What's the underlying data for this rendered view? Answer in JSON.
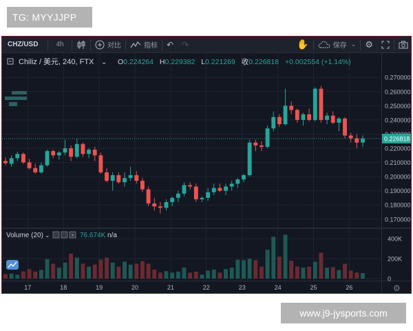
{
  "watermarks": {
    "top": "TG: MYYJJPP",
    "bottom": "www.j9-jysports.com"
  },
  "toolbar": {
    "symbol": "CHZ/USD",
    "interval": "4h",
    "compare_label": "对比",
    "indicators_label": "指标",
    "save_label": "保存",
    "undo_icon": "undo-icon",
    "redo_icon": "redo-icon",
    "bar_style_icon": "candles-icon",
    "settings_icon": "gear-icon",
    "fullscreen_icon": "fullscreen-icon",
    "snapshot_icon": "camera-icon"
  },
  "legend": {
    "title": "Chiliz / 美元, 240, FTX",
    "o_label": "O",
    "o_value": "0.224264",
    "h_label": "H",
    "h_value": "0.229382",
    "l_label": "L",
    "l_value": "0.221269",
    "c_label": "收",
    "c_value": "0.226818",
    "change": "+0.002554 (+1.14%)"
  },
  "volume_legend": {
    "title": "Volume (20)",
    "value": "76.674K",
    "extra": "n/a"
  },
  "colors": {
    "background": "#131722",
    "up": "#26a69a",
    "down": "#ef5350",
    "text": "#d1d4dc",
    "axis_text": "#b2b5be",
    "grid": "#1f2430",
    "window_border": "#7a1c22"
  },
  "chart_data": {
    "type": "candlestick",
    "price_axis": {
      "ticks": [
        "0.270000",
        "0.260000",
        "0.250000",
        "0.240000",
        "0.230000",
        "0.220000",
        "0.210000",
        "0.200000",
        "0.190000",
        "0.180000",
        "0.170000"
      ],
      "range": [
        0.1655,
        0.2745
      ],
      "last_price_label": "0.226818"
    },
    "volume_axis": {
      "ticks": [
        "400K",
        "200K",
        "0"
      ],
      "range": [
        0,
        450000
      ]
    },
    "x_labels": [
      "17",
      "18",
      "19",
      "20",
      "21",
      "22",
      "23",
      "24",
      "25",
      "26"
    ],
    "candles": [
      [
        0.211,
        0.2135,
        0.208,
        0.2095,
        45000
      ],
      [
        0.209,
        0.215,
        0.207,
        0.213,
        50000
      ],
      [
        0.213,
        0.2175,
        0.211,
        0.216,
        38000
      ],
      [
        0.216,
        0.217,
        0.209,
        0.21,
        72000
      ],
      [
        0.21,
        0.2125,
        0.205,
        0.206,
        95000
      ],
      [
        0.206,
        0.209,
        0.202,
        0.203,
        70000
      ],
      [
        0.203,
        0.21,
        0.202,
        0.208,
        88000
      ],
      [
        0.208,
        0.219,
        0.207,
        0.218,
        195000
      ],
      [
        0.218,
        0.219,
        0.213,
        0.215,
        150000
      ],
      [
        0.215,
        0.218,
        0.212,
        0.217,
        110000
      ],
      [
        0.217,
        0.226,
        0.215,
        0.22,
        160000
      ],
      [
        0.22,
        0.222,
        0.211,
        0.214,
        250000
      ],
      [
        0.214,
        0.227,
        0.213,
        0.223,
        210000
      ],
      [
        0.223,
        0.224,
        0.214,
        0.216,
        150000
      ],
      [
        0.216,
        0.22,
        0.213,
        0.219,
        120000
      ],
      [
        0.219,
        0.221,
        0.211,
        0.215,
        140000
      ],
      [
        0.215,
        0.217,
        0.202,
        0.203,
        190000
      ],
      [
        0.203,
        0.206,
        0.196,
        0.197,
        210000
      ],
      [
        0.197,
        0.203,
        0.19,
        0.201,
        160000
      ],
      [
        0.201,
        0.203,
        0.195,
        0.196,
        120000
      ],
      [
        0.196,
        0.203,
        0.193,
        0.199,
        170000
      ],
      [
        0.199,
        0.207,
        0.197,
        0.201,
        140000
      ],
      [
        0.201,
        0.204,
        0.195,
        0.197,
        150000
      ],
      [
        0.197,
        0.199,
        0.189,
        0.191,
        175000
      ],
      [
        0.191,
        0.193,
        0.179,
        0.181,
        150000
      ],
      [
        0.181,
        0.185,
        0.176,
        0.179,
        90000
      ],
      [
        0.179,
        0.182,
        0.174,
        0.178,
        60000
      ],
      [
        0.178,
        0.184,
        0.176,
        0.182,
        75000
      ],
      [
        0.182,
        0.186,
        0.179,
        0.185,
        60000
      ],
      [
        0.185,
        0.19,
        0.182,
        0.188,
        70000
      ],
      [
        0.188,
        0.196,
        0.186,
        0.194,
        110000
      ],
      [
        0.194,
        0.196,
        0.191,
        0.193,
        60000
      ],
      [
        0.193,
        0.195,
        0.182,
        0.184,
        70000
      ],
      [
        0.184,
        0.186,
        0.182,
        0.185,
        40000
      ],
      [
        0.185,
        0.192,
        0.183,
        0.189,
        80000
      ],
      [
        0.189,
        0.195,
        0.187,
        0.192,
        90000
      ],
      [
        0.192,
        0.195,
        0.189,
        0.19,
        60000
      ],
      [
        0.19,
        0.195,
        0.187,
        0.193,
        95000
      ],
      [
        0.193,
        0.197,
        0.19,
        0.195,
        110000
      ],
      [
        0.195,
        0.199,
        0.192,
        0.198,
        190000
      ],
      [
        0.198,
        0.202,
        0.196,
        0.201,
        185000
      ],
      [
        0.201,
        0.226,
        0.2,
        0.224,
        200000
      ],
      [
        0.224,
        0.226,
        0.218,
        0.222,
        185000
      ],
      [
        0.222,
        0.225,
        0.218,
        0.221,
        120000
      ],
      [
        0.221,
        0.236,
        0.22,
        0.234,
        290000
      ],
      [
        0.234,
        0.246,
        0.232,
        0.242,
        420000
      ],
      [
        0.242,
        0.244,
        0.235,
        0.237,
        220000
      ],
      [
        0.237,
        0.262,
        0.236,
        0.25,
        440000
      ],
      [
        0.25,
        0.253,
        0.244,
        0.247,
        180000
      ],
      [
        0.247,
        0.248,
        0.238,
        0.24,
        120000
      ],
      [
        0.24,
        0.245,
        0.236,
        0.244,
        110000
      ],
      [
        0.244,
        0.248,
        0.239,
        0.24,
        120000
      ],
      [
        0.24,
        0.263,
        0.239,
        0.262,
        170000
      ],
      [
        0.262,
        0.264,
        0.238,
        0.24,
        260000
      ],
      [
        0.24,
        0.245,
        0.237,
        0.243,
        110000
      ],
      [
        0.243,
        0.246,
        0.237,
        0.238,
        115000
      ],
      [
        0.238,
        0.242,
        0.232,
        0.241,
        85000
      ],
      [
        0.241,
        0.242,
        0.227,
        0.229,
        150000
      ],
      [
        0.229,
        0.231,
        0.224,
        0.227,
        80000
      ],
      [
        0.227,
        0.23,
        0.22,
        0.224,
        60000
      ],
      [
        0.224,
        0.229,
        0.221,
        0.227,
        55000
      ]
    ]
  }
}
